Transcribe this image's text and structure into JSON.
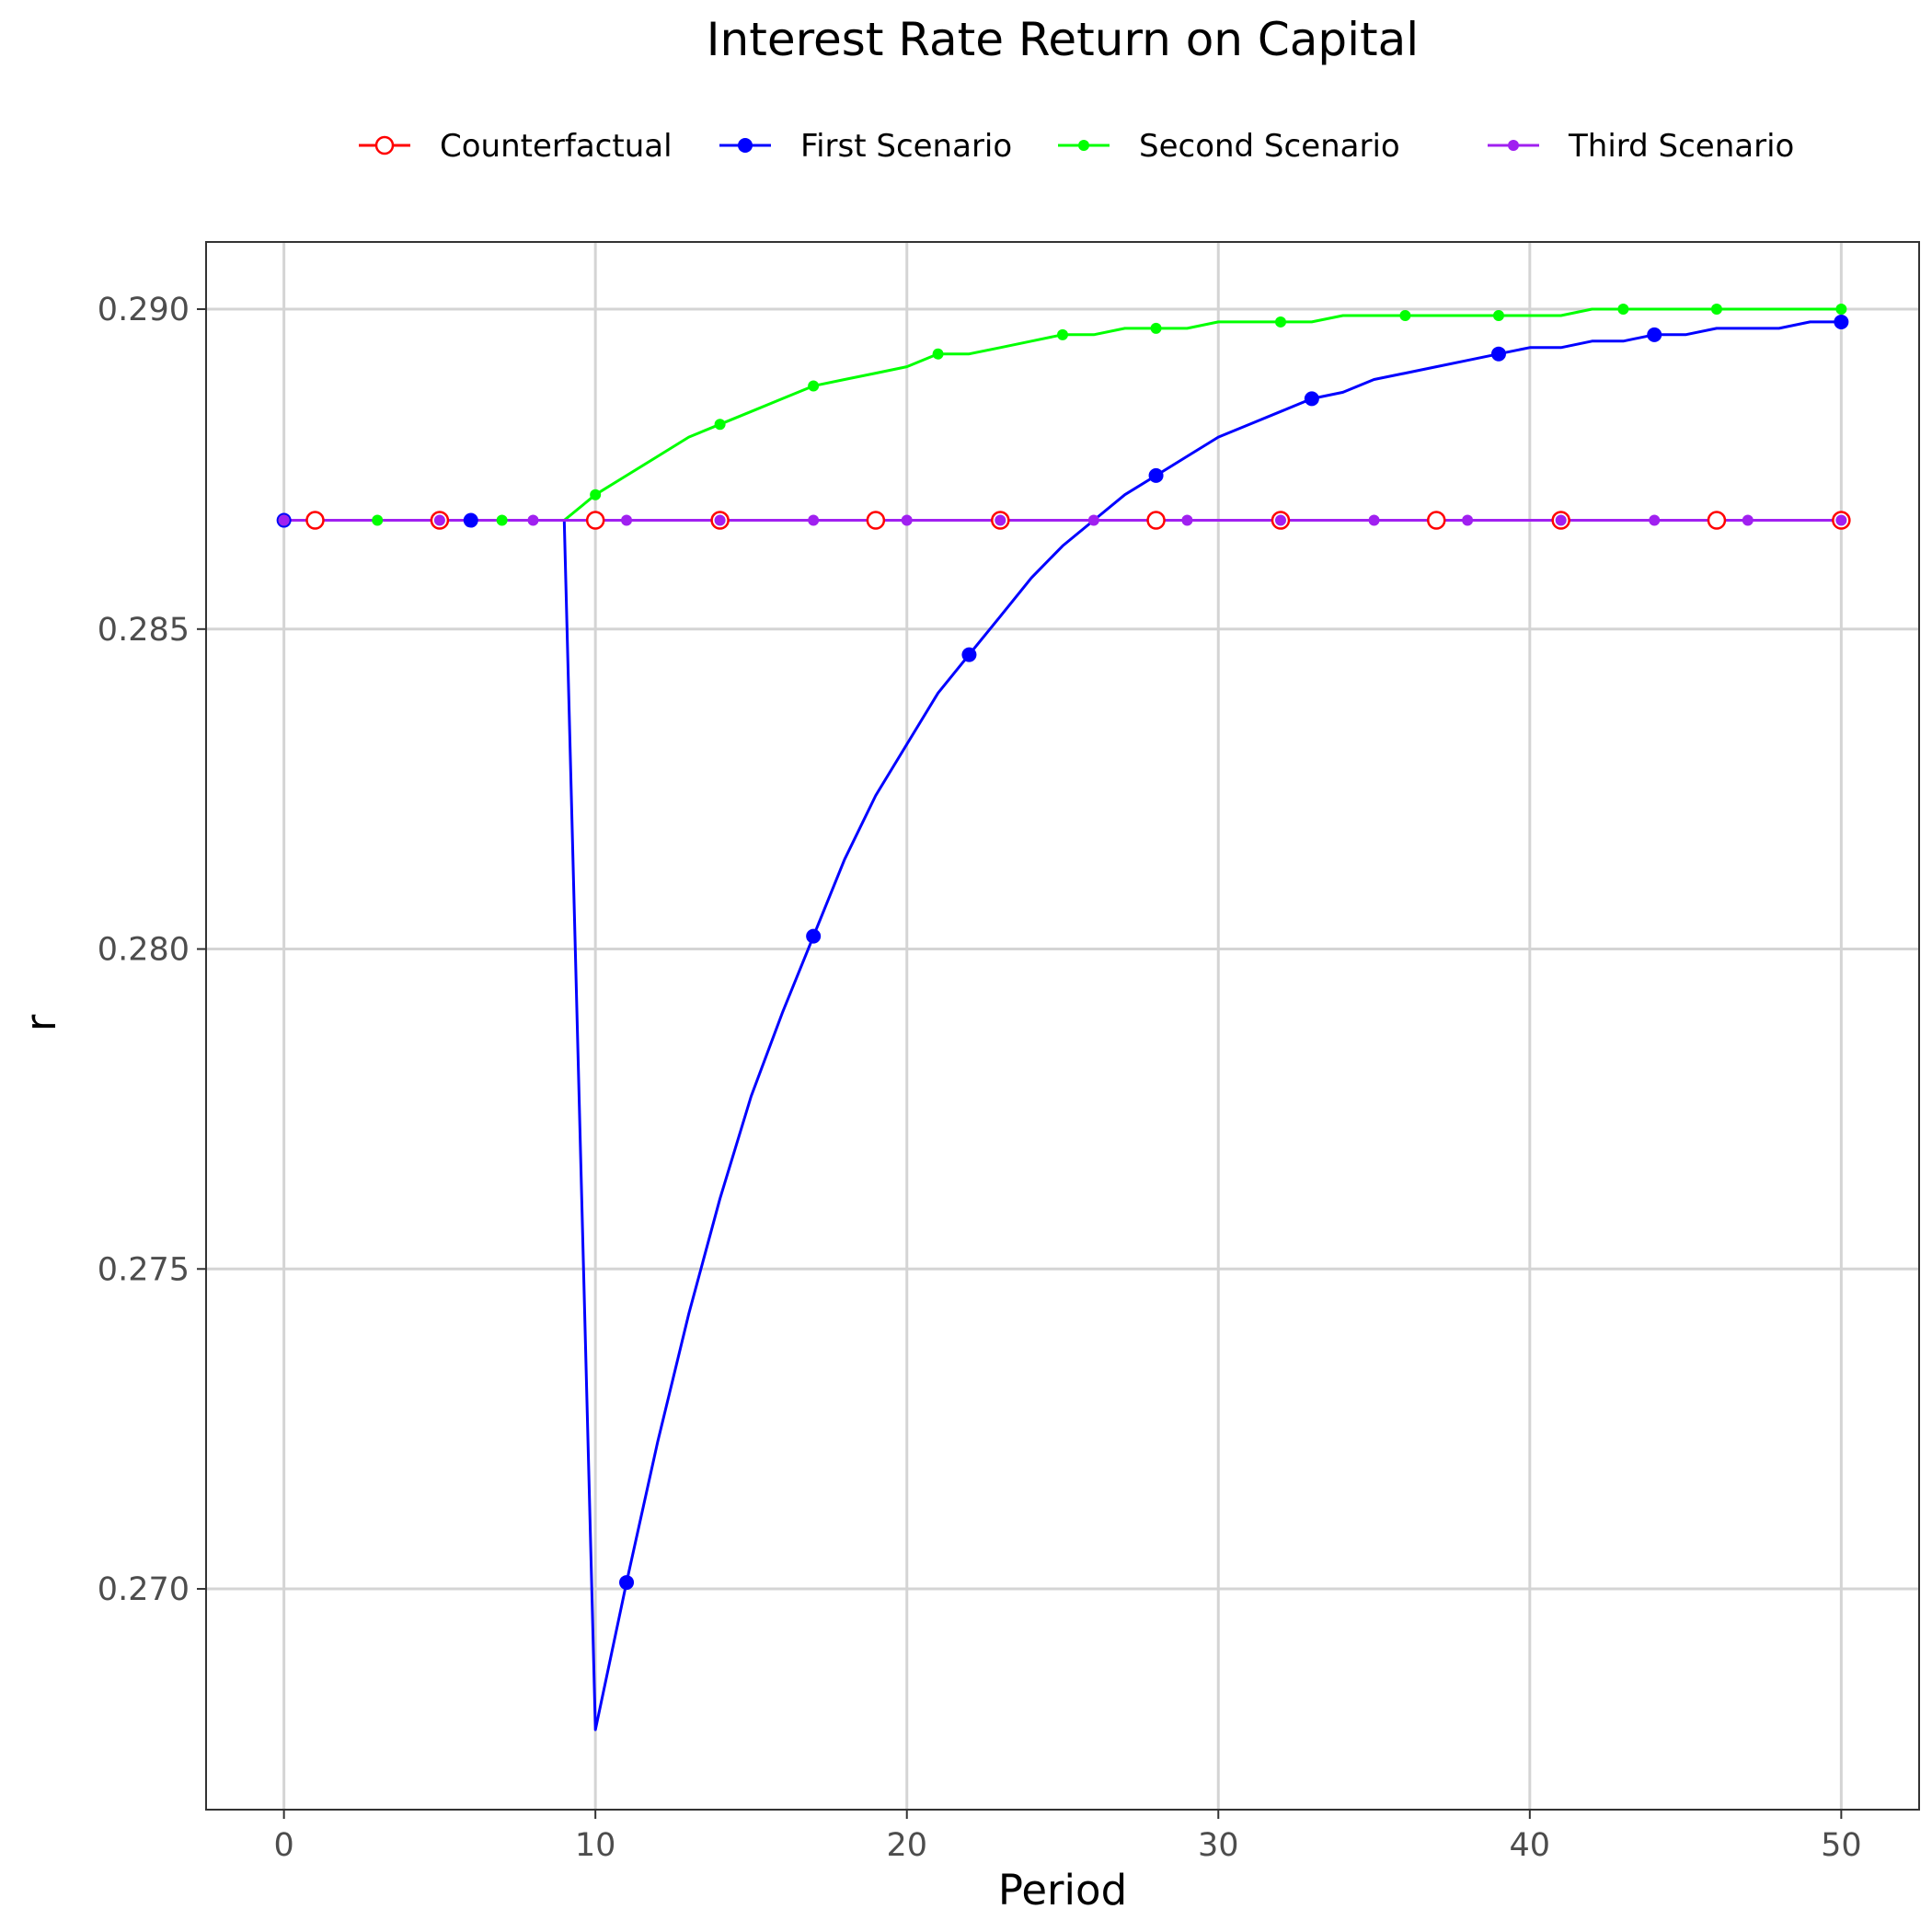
{
  "chart_data": {
    "type": "line",
    "title": "Interest Rate Return on Capital",
    "xlabel": "Period",
    "ylabel": "r",
    "xlim": [
      -2.5,
      52.5
    ],
    "ylim": [
      0.26655,
      0.29105
    ],
    "x_ticks": [
      0,
      10,
      20,
      30,
      40,
      50
    ],
    "y_ticks": [
      0.27,
      0.275,
      0.28,
      0.285,
      0.29
    ],
    "x_tick_labels": [
      "0",
      "10",
      "20",
      "30",
      "40",
      "50"
    ],
    "y_tick_labels": [
      "0.270",
      "0.275",
      "0.280",
      "0.285",
      "0.290"
    ],
    "grid": true,
    "legend_position": "top",
    "series": [
      {
        "name": "Counterfactual",
        "color": "#ff0000",
        "marker": "open-circle",
        "x": [
          0,
          1,
          2,
          3,
          4,
          5,
          6,
          7,
          8,
          9,
          10,
          11,
          12,
          13,
          14,
          15,
          16,
          17,
          18,
          19,
          20,
          21,
          22,
          23,
          24,
          25,
          26,
          27,
          28,
          29,
          30,
          31,
          32,
          33,
          34,
          35,
          36,
          37,
          38,
          39,
          40,
          41,
          42,
          43,
          44,
          45,
          46,
          47,
          48,
          49,
          50
        ],
        "y": [
          0.2867,
          0.2867,
          0.2867,
          0.2867,
          0.2867,
          0.2867,
          0.2867,
          0.2867,
          0.2867,
          0.2867,
          0.2867,
          0.2867,
          0.2867,
          0.2867,
          0.2867,
          0.2867,
          0.2867,
          0.2867,
          0.2867,
          0.2867,
          0.2867,
          0.2867,
          0.2867,
          0.2867,
          0.2867,
          0.2867,
          0.2867,
          0.2867,
          0.2867,
          0.2867,
          0.2867,
          0.2867,
          0.2867,
          0.2867,
          0.2867,
          0.2867,
          0.2867,
          0.2867,
          0.2867,
          0.2867,
          0.2867,
          0.2867,
          0.2867,
          0.2867,
          0.2867,
          0.2867,
          0.2867,
          0.2867,
          0.2867,
          0.2867,
          0.2867
        ],
        "marker_x": [
          1,
          5,
          10,
          14,
          19,
          23,
          28,
          32,
          37,
          41,
          46,
          50
        ]
      },
      {
        "name": "First Scenario",
        "color": "#0000ff",
        "marker": "filled-circle",
        "x": [
          0,
          1,
          2,
          3,
          4,
          5,
          6,
          7,
          8,
          9,
          10,
          11,
          12,
          13,
          14,
          15,
          16,
          17,
          18,
          19,
          20,
          21,
          22,
          23,
          24,
          25,
          26,
          27,
          28,
          29,
          30,
          31,
          32,
          33,
          34,
          35,
          36,
          37,
          38,
          39,
          40,
          41,
          42,
          43,
          44,
          45,
          46,
          47,
          48,
          49,
          50
        ],
        "y": [
          0.2867,
          0.2867,
          0.2867,
          0.2867,
          0.2867,
          0.2867,
          0.2867,
          0.2867,
          0.2867,
          0.2867,
          0.2678,
          0.2701,
          0.2723,
          0.2743,
          0.2761,
          0.2777,
          0.279,
          0.2802,
          0.2814,
          0.2824,
          0.2832,
          0.284,
          0.2846,
          0.2852,
          0.2858,
          0.2863,
          0.2867,
          0.2871,
          0.2874,
          0.2877,
          0.288,
          0.2882,
          0.2884,
          0.2886,
          0.2887,
          0.2889,
          0.289,
          0.2891,
          0.2892,
          0.2893,
          0.2894,
          0.2894,
          0.2895,
          0.2895,
          0.2896,
          0.2896,
          0.2897,
          0.2897,
          0.2897,
          0.2898,
          0.2898
        ],
        "marker_x": [
          0,
          6,
          11,
          17,
          22,
          28,
          33,
          39,
          44,
          50
        ]
      },
      {
        "name": "Second Scenario",
        "color": "#00ff00",
        "marker": "small-dot",
        "x": [
          0,
          1,
          2,
          3,
          4,
          5,
          6,
          7,
          8,
          9,
          10,
          11,
          12,
          13,
          14,
          15,
          16,
          17,
          18,
          19,
          20,
          21,
          22,
          23,
          24,
          25,
          26,
          27,
          28,
          29,
          30,
          31,
          32,
          33,
          34,
          35,
          36,
          37,
          38,
          39,
          40,
          41,
          42,
          43,
          44,
          45,
          46,
          47,
          48,
          49,
          50
        ],
        "y": [
          0.2867,
          0.2867,
          0.2867,
          0.2867,
          0.2867,
          0.2867,
          0.2867,
          0.2867,
          0.2867,
          0.2867,
          0.2871,
          0.2874,
          0.2877,
          0.288,
          0.2882,
          0.2884,
          0.2886,
          0.2888,
          0.2889,
          0.289,
          0.2891,
          0.2893,
          0.2893,
          0.2894,
          0.2895,
          0.2896,
          0.2896,
          0.2897,
          0.2897,
          0.2897,
          0.2898,
          0.2898,
          0.2898,
          0.2898,
          0.2899,
          0.2899,
          0.2899,
          0.2899,
          0.2899,
          0.2899,
          0.2899,
          0.2899,
          0.29,
          0.29,
          0.29,
          0.29,
          0.29,
          0.29,
          0.29,
          0.29,
          0.29
        ],
        "marker_x": [
          0,
          3,
          7,
          10,
          14,
          17,
          21,
          25,
          28,
          32,
          36,
          39,
          43,
          46,
          50
        ]
      },
      {
        "name": "Third Scenario",
        "color": "#a020f0",
        "marker": "small-dot",
        "x": [
          0,
          1,
          2,
          3,
          4,
          5,
          6,
          7,
          8,
          9,
          10,
          11,
          12,
          13,
          14,
          15,
          16,
          17,
          18,
          19,
          20,
          21,
          22,
          23,
          24,
          25,
          26,
          27,
          28,
          29,
          30,
          31,
          32,
          33,
          34,
          35,
          36,
          37,
          38,
          39,
          40,
          41,
          42,
          43,
          44,
          45,
          46,
          47,
          48,
          49,
          50
        ],
        "y": [
          0.2867,
          0.2867,
          0.2867,
          0.2867,
          0.2867,
          0.2867,
          0.2867,
          0.2867,
          0.2867,
          0.2867,
          0.2867,
          0.2867,
          0.2867,
          0.2867,
          0.2867,
          0.2867,
          0.2867,
          0.2867,
          0.2867,
          0.2867,
          0.2867,
          0.2867,
          0.2867,
          0.2867,
          0.2867,
          0.2867,
          0.2867,
          0.2867,
          0.2867,
          0.2867,
          0.2867,
          0.2867,
          0.2867,
          0.2867,
          0.2867,
          0.2867,
          0.2867,
          0.2867,
          0.2867,
          0.2867,
          0.2867,
          0.2867,
          0.2867,
          0.2867,
          0.2867,
          0.2867,
          0.2867,
          0.2867,
          0.2867,
          0.2867,
          0.2867
        ],
        "marker_x": [
          0,
          5,
          8,
          11,
          14,
          17,
          20,
          23,
          26,
          29,
          32,
          35,
          38,
          41,
          44,
          47,
          50
        ]
      }
    ]
  }
}
